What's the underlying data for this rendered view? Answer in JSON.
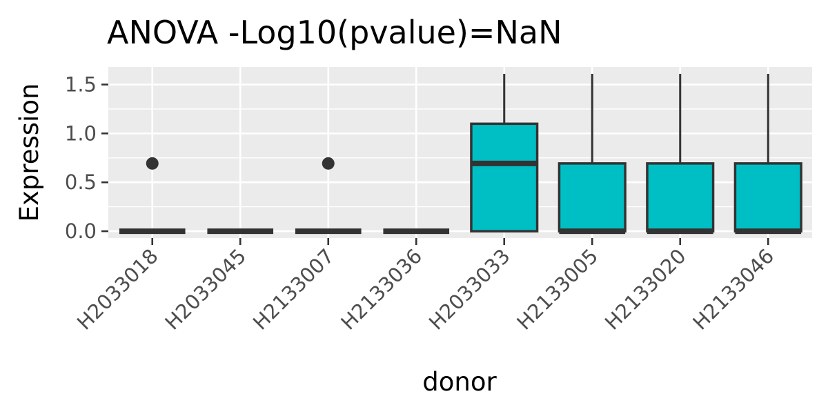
{
  "chart_data": {
    "type": "boxplot",
    "title": "ANOVA -Log10(pvalue)=NaN",
    "xlabel": "donor",
    "ylabel": "Expression",
    "ylim": [
      -0.07,
      1.68
    ],
    "yticks": [
      0.0,
      0.5,
      1.0,
      1.5
    ],
    "ytick_labels": [
      "0.0",
      "0.5",
      "1.0",
      "1.5"
    ],
    "grid": true,
    "legend": "none",
    "categories": [
      "H2033018",
      "H2033045",
      "H2133007",
      "H2133036",
      "H2033033",
      "H2133005",
      "H2133020",
      "H2133046"
    ],
    "boxes": [
      {
        "q1": 0,
        "median": 0,
        "q3": 0,
        "whisker_low": 0,
        "whisker_high": 0,
        "outliers": [
          0.693
        ],
        "fill": "none"
      },
      {
        "q1": 0,
        "median": 0,
        "q3": 0,
        "whisker_low": 0,
        "whisker_high": 0,
        "outliers": [],
        "fill": "none"
      },
      {
        "q1": 0,
        "median": 0,
        "q3": 0,
        "whisker_low": 0,
        "whisker_high": 0,
        "outliers": [
          0.693
        ],
        "fill": "none"
      },
      {
        "q1": 0,
        "median": 0,
        "q3": 0,
        "whisker_low": 0,
        "whisker_high": 0,
        "outliers": [],
        "fill": "none"
      },
      {
        "q1": 0,
        "median": 0.693,
        "q3": 1.099,
        "whisker_low": 0,
        "whisker_high": 1.609,
        "outliers": [],
        "fill": "#00bfc4"
      },
      {
        "q1": 0,
        "median": 0,
        "q3": 0.693,
        "whisker_low": 0,
        "whisker_high": 1.609,
        "outliers": [],
        "fill": "#00bfc4"
      },
      {
        "q1": 0,
        "median": 0,
        "q3": 0.693,
        "whisker_low": 0,
        "whisker_high": 1.609,
        "outliers": [],
        "fill": "#00bfc4"
      },
      {
        "q1": 0,
        "median": 0,
        "q3": 0.693,
        "whisker_low": 0,
        "whisker_high": 1.609,
        "outliers": [],
        "fill": "#00bfc4"
      }
    ],
    "colors": {
      "panel": "#ebebeb",
      "grid": "#ffffff",
      "box_line": "#333333",
      "box_fill": "#00bfc4",
      "tick_text": "#4d4d4d",
      "tick_mark": "#333333"
    }
  }
}
